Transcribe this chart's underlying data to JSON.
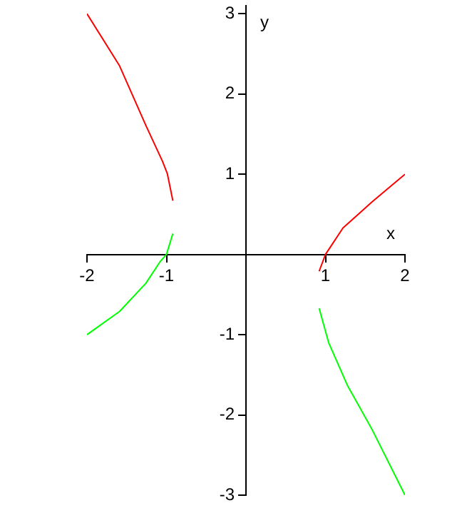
{
  "chart_data": {
    "type": "line",
    "xlabel": "x",
    "ylabel": "y",
    "xlim": [
      -2,
      2
    ],
    "ylim": [
      -3,
      3.1
    ],
    "xticks": [
      -2,
      -1,
      1,
      2
    ],
    "yticks": [
      -3,
      -2,
      -1,
      1,
      2,
      3
    ],
    "grid": false,
    "legend": false,
    "marker": "none",
    "line_style": "solid",
    "series": [
      {
        "color": "#ff0000",
        "x": [
          -2,
          -1.59,
          -1.26,
          -1.05,
          -0.99,
          -0.92
        ],
        "values": [
          3,
          2.35,
          1.61,
          1.16,
          1.01,
          0.67
        ]
      },
      {
        "color": "#00ff00",
        "x": [
          -2,
          -1.59,
          -1.26,
          -1.08,
          -1,
          -0.92
        ],
        "values": [
          -1,
          -0.71,
          -0.36,
          -0.09,
          0,
          0.26
        ]
      },
      {
        "color": "#ff0000",
        "x": [
          0.92,
          1,
          1.22,
          1.58,
          2
        ],
        "values": [
          -0.21,
          0,
          0.33,
          0.65,
          1
        ]
      },
      {
        "color": "#00ff00",
        "x": [
          0.92,
          1.04,
          1.28,
          1.58,
          2
        ],
        "values": [
          -0.67,
          -1.1,
          -1.64,
          -2.17,
          -3
        ]
      }
    ]
  }
}
